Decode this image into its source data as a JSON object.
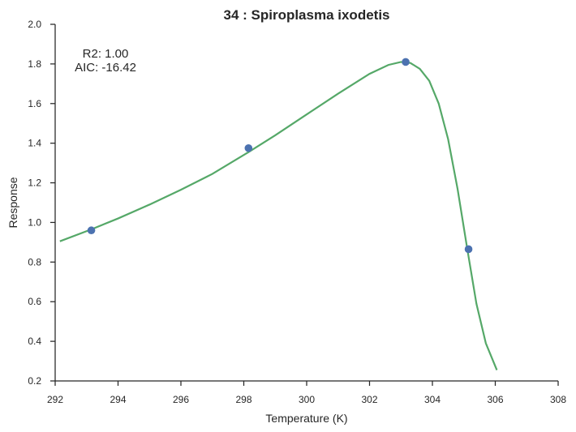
{
  "chart_data": {
    "type": "scatter",
    "title": "34 : Spiroplasma ixodetis",
    "xlabel": "Temperature (K)",
    "ylabel": "Response",
    "xlim": [
      292,
      308
    ],
    "ylim": [
      0.2,
      2.0
    ],
    "xticks": [
      292,
      294,
      296,
      298,
      300,
      302,
      304,
      306,
      308
    ],
    "yticks": [
      0.2,
      0.4,
      0.6,
      0.8,
      1.0,
      1.2,
      1.4,
      1.6,
      1.8,
      2.0
    ],
    "xtick_labels": [
      "292",
      "294",
      "296",
      "298",
      "300",
      "302",
      "304",
      "306",
      "308"
    ],
    "ytick_labels": [
      "0.2",
      "0.4",
      "0.6",
      "0.8",
      "1.0",
      "1.2",
      "1.4",
      "1.6",
      "1.8",
      "2.0"
    ],
    "grid": false,
    "annotations": [
      "R2: 1.00",
      "AIC: -16.42"
    ],
    "series": [
      {
        "kind": "scatter",
        "color": "#4c72b0",
        "x": [
          293.15,
          298.15,
          303.15,
          305.15
        ],
        "y": [
          0.96,
          1.375,
          1.81,
          0.865
        ]
      },
      {
        "kind": "line",
        "color": "#55a868",
        "x": [
          292.15,
          293.15,
          294.0,
          295.0,
          296.0,
          297.0,
          298.15,
          299.0,
          300.0,
          301.0,
          302.0,
          302.6,
          303.0,
          303.3,
          303.6,
          303.9,
          304.2,
          304.5,
          304.8,
          305.1,
          305.4,
          305.7,
          306.05
        ],
        "y": [
          0.905,
          0.965,
          1.02,
          1.09,
          1.165,
          1.245,
          1.355,
          1.44,
          1.545,
          1.65,
          1.75,
          1.795,
          1.81,
          1.805,
          1.775,
          1.715,
          1.6,
          1.42,
          1.17,
          0.875,
          0.59,
          0.39,
          0.255
        ]
      }
    ]
  }
}
